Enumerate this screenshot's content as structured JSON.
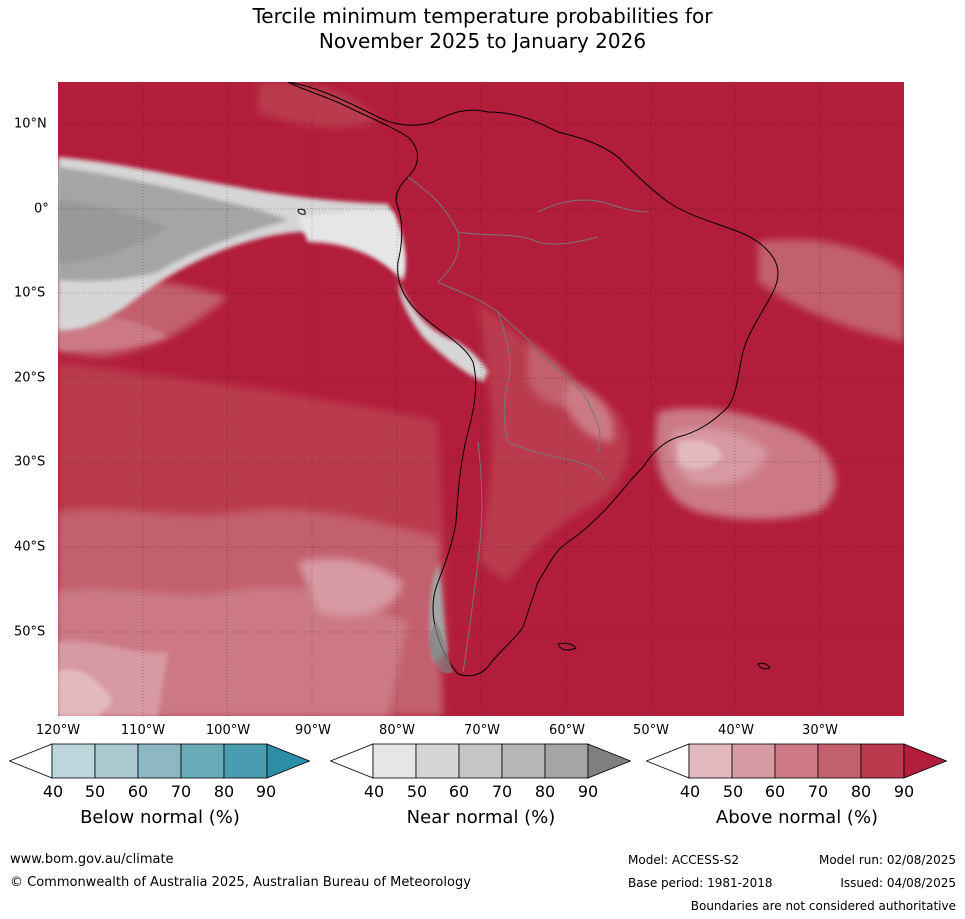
{
  "title": {
    "line1": "Tercile minimum temperature probabilities for",
    "line2": "November 2025 to January 2026"
  },
  "map": {
    "lat_labels": [
      "10°N",
      "0°",
      "10°S",
      "20°S",
      "30°S",
      "40°S",
      "50°S"
    ],
    "lon_labels": [
      "120°W",
      "110°W",
      "100°W",
      "90°W",
      "80°W",
      "70°W",
      "60°W",
      "50°W",
      "40°W",
      "30°W"
    ]
  },
  "legends": [
    {
      "title": "Below normal (%)",
      "ticks": [
        "40",
        "50",
        "60",
        "70",
        "80",
        "90"
      ],
      "colors": [
        "#ffffff",
        "#bcd6dc",
        "#a8c9d0",
        "#8bb8c3",
        "#6aa9b7",
        "#4a9db0",
        "#2b8ea6"
      ]
    },
    {
      "title": "Near normal (%)",
      "ticks": [
        "40",
        "50",
        "60",
        "70",
        "80",
        "90"
      ],
      "colors": [
        "#ffffff",
        "#e6e6e6",
        "#d6d6d6",
        "#c6c6c6",
        "#b6b6b6",
        "#a5a5a5",
        "#808080"
      ]
    },
    {
      "title": "Above normal (%)",
      "ticks": [
        "40",
        "50",
        "60",
        "70",
        "80",
        "90"
      ],
      "colors": [
        "#ffffff",
        "#e3b9c0",
        "#d799a2",
        "#cb7a85",
        "#c3606d",
        "#ba3a4d",
        "#b21d3b"
      ]
    }
  ],
  "footer": {
    "website": "www.bom.gov.au/climate",
    "copyright": "© Commonwealth of Australia 2025, Australian Bureau of Meteorology",
    "model": "Model: ACCESS-S2",
    "base_period": "Base period: 1981-2018",
    "model_run": "Model run: 02/08/2025",
    "issued": "Issued: 04/08/2025",
    "disclaimer": "Boundaries are not considered authoritative"
  }
}
